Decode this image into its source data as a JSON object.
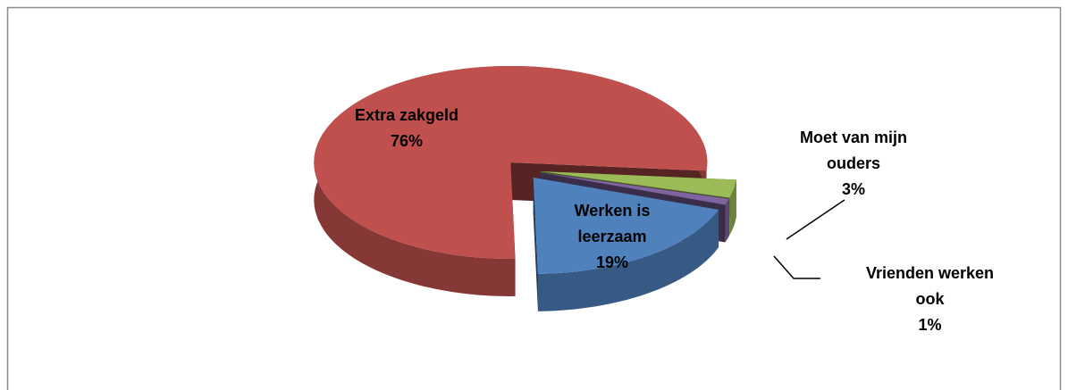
{
  "chart_data": {
    "type": "pie3d",
    "categories": [
      "Extra zakgeld",
      "Werken is leerzaam",
      "Vrienden werken ook",
      "Moet van mijn ouders"
    ],
    "values": [
      76,
      19,
      1,
      3
    ],
    "value_labels": [
      "76%",
      "19%",
      "1%",
      "3%"
    ],
    "colors": [
      "#c0504d",
      "#4f81bd",
      "#8064a2",
      "#9bbb59"
    ]
  }
}
